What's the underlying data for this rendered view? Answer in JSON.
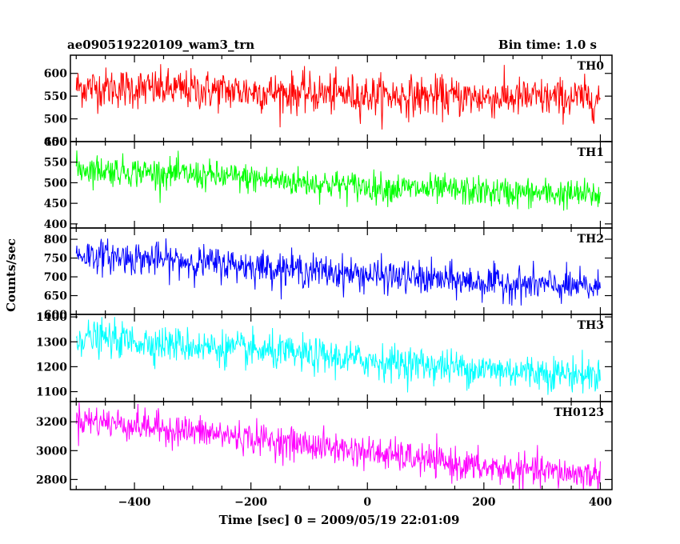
{
  "header": {
    "title": "ae090519220109_wam3_trn",
    "bin_time": "Bin time: 1.0 s"
  },
  "chart_data": {
    "type": "line",
    "title": "ae090519220109_wam3_trn",
    "xlabel": "Time [sec] 0 = 2009/05/19 22:01:09",
    "ylabel": "Counts/sec",
    "xlim": [
      -510,
      420
    ],
    "x_ticks": [
      -400,
      -200,
      0,
      200,
      400
    ],
    "x_range": [
      -500,
      400
    ],
    "grid": false,
    "panels": [
      {
        "label": "TH0",
        "color": "#ff0000",
        "ylim": [
          450,
          640
        ],
        "y_ticks": [
          450,
          500,
          550,
          600
        ],
        "trend": [
          {
            "x": -500,
            "y": 570
          },
          {
            "x": -250,
            "y": 562
          },
          {
            "x": 0,
            "y": 552
          },
          {
            "x": 200,
            "y": 547
          },
          {
            "x": 400,
            "y": 545
          }
        ],
        "noise_sd": 22
      },
      {
        "label": "TH1",
        "color": "#00ff00",
        "ylim": [
          390,
          600
        ],
        "y_ticks": [
          400,
          450,
          500,
          550,
          600
        ],
        "trend": [
          {
            "x": -500,
            "y": 535
          },
          {
            "x": -250,
            "y": 515
          },
          {
            "x": 0,
            "y": 490
          },
          {
            "x": 200,
            "y": 478
          },
          {
            "x": 400,
            "y": 470
          }
        ],
        "noise_sd": 18
      },
      {
        "label": "TH2",
        "color": "#0000ff",
        "ylim": [
          600,
          830
        ],
        "y_ticks": [
          600,
          650,
          700,
          750,
          800
        ],
        "trend": [
          {
            "x": -500,
            "y": 760
          },
          {
            "x": -250,
            "y": 735
          },
          {
            "x": 0,
            "y": 705
          },
          {
            "x": 200,
            "y": 685
          },
          {
            "x": 400,
            "y": 670
          }
        ],
        "noise_sd": 22
      },
      {
        "label": "TH3",
        "color": "#00ffff",
        "ylim": [
          1060,
          1410
        ],
        "y_ticks": [
          1100,
          1200,
          1300,
          1400
        ],
        "trend": [
          {
            "x": -500,
            "y": 1320
          },
          {
            "x": -250,
            "y": 1275
          },
          {
            "x": 0,
            "y": 1225
          },
          {
            "x": 200,
            "y": 1190
          },
          {
            "x": 400,
            "y": 1165
          }
        ],
        "noise_sd": 35
      },
      {
        "label": "TH0123",
        "color": "#ff00ff",
        "ylim": [
          2730,
          3340
        ],
        "y_ticks": [
          2800,
          3000,
          3200
        ],
        "trend": [
          {
            "x": -500,
            "y": 3220
          },
          {
            "x": -250,
            "y": 3110
          },
          {
            "x": 0,
            "y": 2990
          },
          {
            "x": 200,
            "y": 2880
          },
          {
            "x": 400,
            "y": 2830
          }
        ],
        "noise_sd": 55
      }
    ]
  }
}
